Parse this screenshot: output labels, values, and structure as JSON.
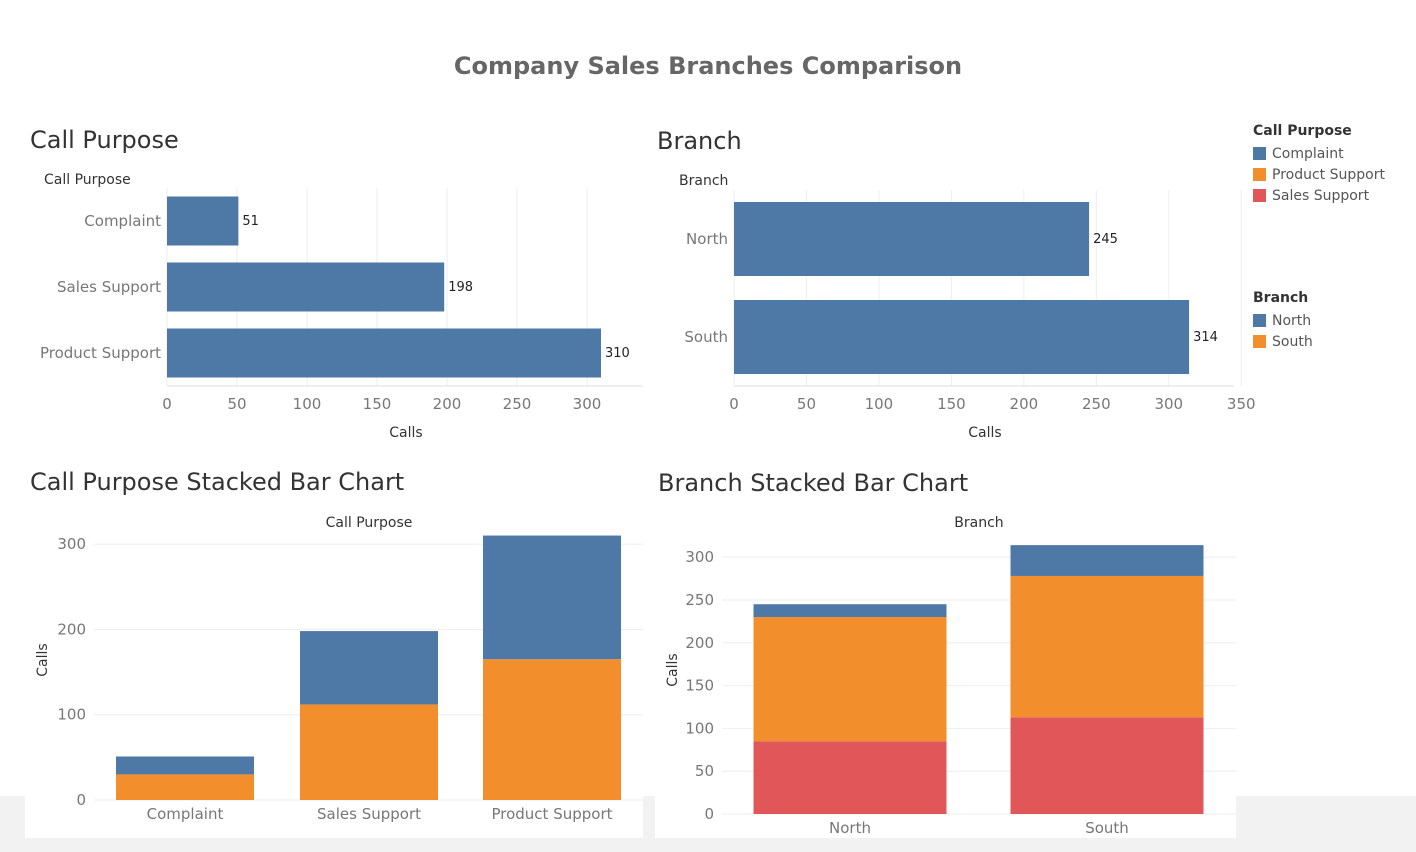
{
  "page": {
    "title": "Company Sales Branches Comparison"
  },
  "colors": {
    "complaint": "#4e79a7",
    "product_support": "#f28e2b",
    "sales_support": "#e15759",
    "grid": "#eeeeee"
  },
  "legends": [
    {
      "title": "Call Purpose",
      "items": [
        {
          "label": "Complaint",
          "color": "#4e79a7"
        },
        {
          "label": "Product Support",
          "color": "#f28e2b"
        },
        {
          "label": "Sales Support",
          "color": "#e15759"
        }
      ]
    },
    {
      "title": "Branch",
      "items": [
        {
          "label": "North",
          "color": "#4e79a7"
        },
        {
          "label": "South",
          "color": "#f28e2b"
        }
      ]
    }
  ],
  "chart_data": [
    {
      "type": "bar",
      "title": "Call Purpose",
      "orientation": "horizontal",
      "header": "Call Purpose",
      "categories": [
        "Complaint",
        "Sales Support",
        "Product Support"
      ],
      "values": [
        51,
        198,
        310
      ],
      "data_labels": [
        "51",
        "198",
        "310"
      ],
      "xlabel": "Calls",
      "xticks": [
        "0",
        "50",
        "100",
        "150",
        "200",
        "250",
        "300"
      ],
      "xlim": [
        0,
        340
      ],
      "grid": true
    },
    {
      "type": "bar",
      "title": "Branch",
      "orientation": "horizontal",
      "header": "Branch",
      "categories": [
        "North",
        "South"
      ],
      "values": [
        245,
        314
      ],
      "data_labels": [
        "245",
        "314"
      ],
      "xlabel": "Calls",
      "xticks": [
        "0",
        "50",
        "100",
        "150",
        "200",
        "250",
        "300",
        "350"
      ],
      "xlim": [
        0,
        345
      ],
      "grid": true
    },
    {
      "type": "bar",
      "stacked": true,
      "title": "Call Purpose Stacked Bar Chart",
      "header": "Call Purpose",
      "categories": [
        "Complaint",
        "Sales Support",
        "Product Support"
      ],
      "series": [
        {
          "key": "product_support",
          "values": [
            30,
            112,
            165
          ]
        },
        {
          "key": "complaint",
          "values": [
            21,
            86,
            145
          ]
        }
      ],
      "ylabel": "Calls",
      "yticks": [
        "0",
        "100",
        "200",
        "300"
      ],
      "ylim": [
        0,
        320
      ],
      "grid": true
    },
    {
      "type": "bar",
      "stacked": true,
      "title": "Branch Stacked Bar Chart",
      "header": "Branch",
      "categories": [
        "North",
        "South"
      ],
      "series": [
        {
          "key": "sales_support",
          "values": [
            85,
            113
          ]
        },
        {
          "key": "product_support",
          "values": [
            145,
            165
          ]
        },
        {
          "key": "complaint",
          "values": [
            15,
            36
          ]
        }
      ],
      "ylabel": "Calls",
      "yticks": [
        "0",
        "50",
        "100",
        "150",
        "200",
        "250",
        "300"
      ],
      "ylim": [
        0,
        320
      ],
      "grid": true
    }
  ]
}
